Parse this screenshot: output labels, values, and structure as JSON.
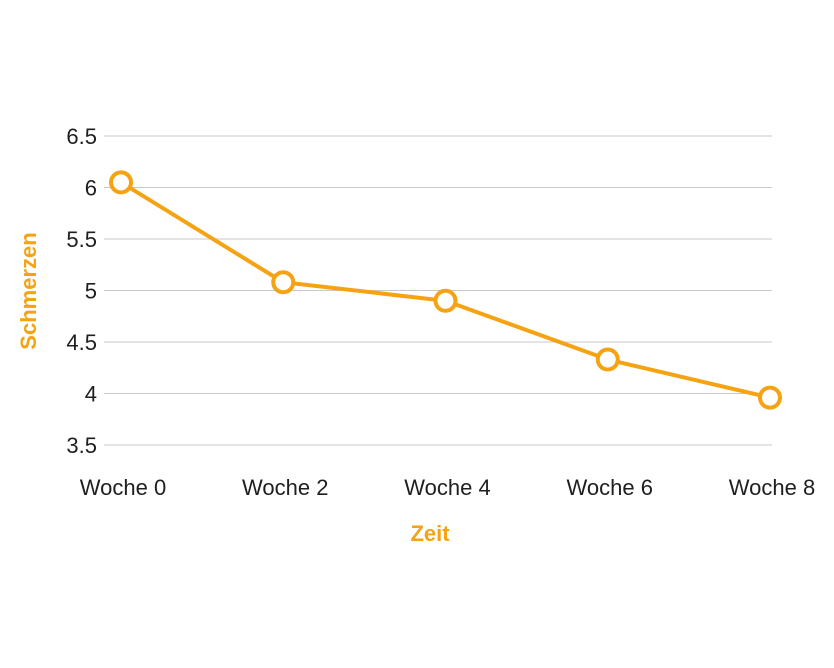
{
  "chart_data": {
    "type": "line",
    "title": "",
    "xlabel": "Zeit",
    "ylabel": "Schmerzen",
    "categories": [
      "Woche 0",
      "Woche 2",
      "Woche 4",
      "Woche 6",
      "Woche 8"
    ],
    "series": [
      {
        "values": [
          6.05,
          5.08,
          4.9,
          4.33,
          3.96
        ]
      }
    ],
    "ylim": [
      3.5,
      6.5
    ],
    "yticks": [
      "3.5",
      "4",
      "4.5",
      "5",
      "5.5",
      "6",
      "6.5"
    ],
    "grid": true,
    "legend": "none",
    "colors": {
      "series": "#f5a312",
      "axis_title": "#f5a312",
      "grid": "#c8c8c8",
      "tick_text": "#1f1f1f",
      "marker_fill": "#ffffff"
    }
  }
}
